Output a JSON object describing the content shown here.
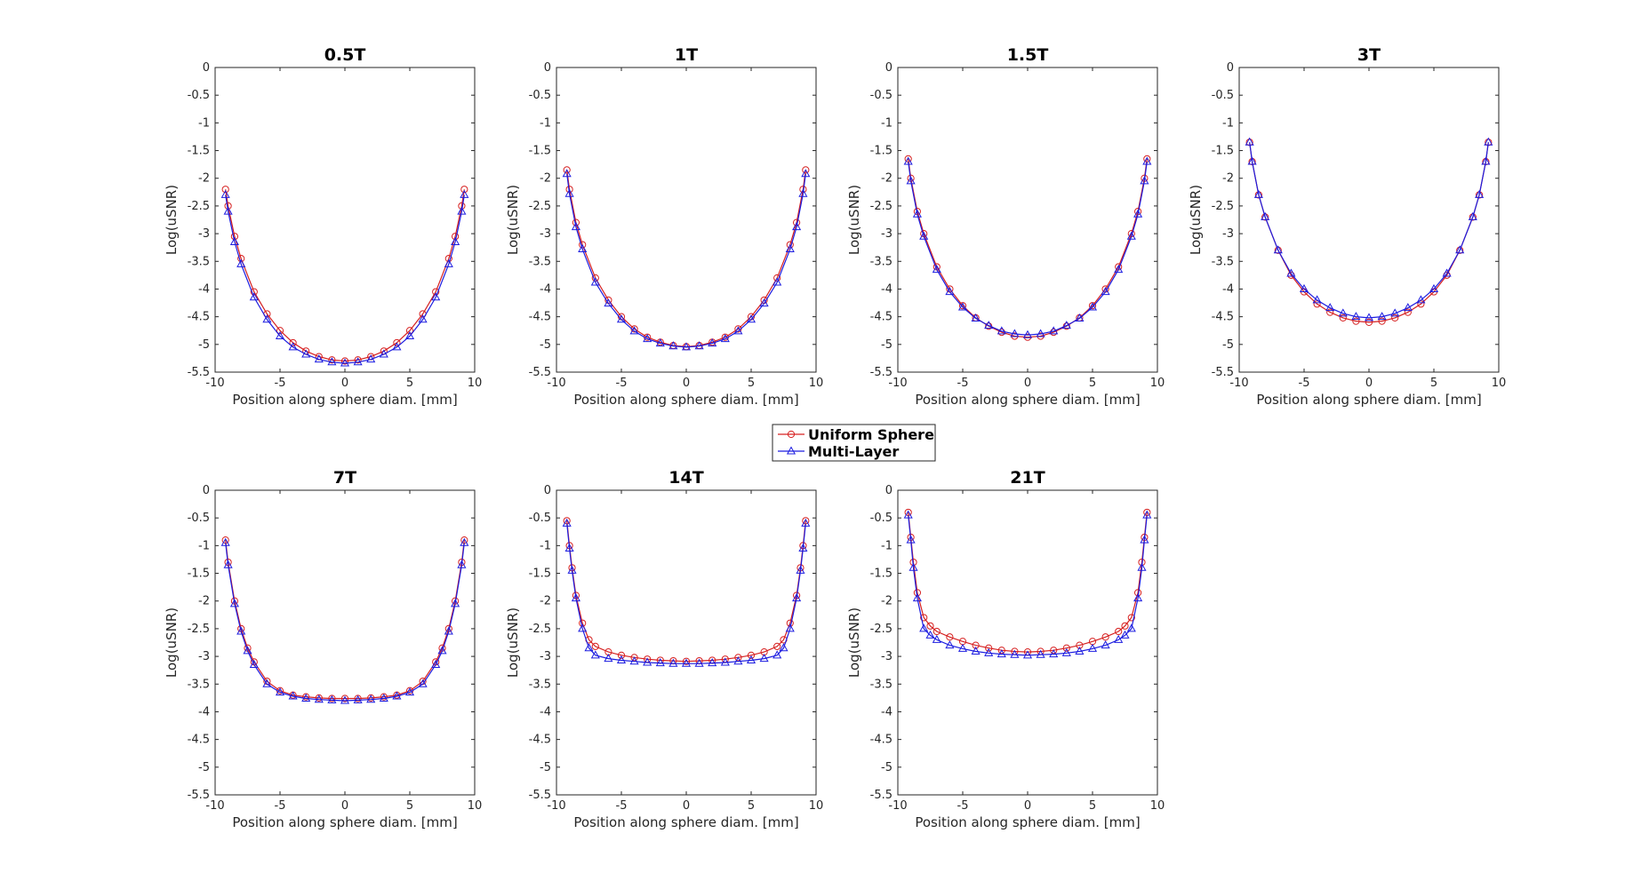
{
  "chart_data": {
    "type": "line",
    "xlabel": "Position along sphere diam. [mm]",
    "ylabel": "Log(uSNR)",
    "xlim": [
      -10,
      10
    ],
    "ylim": [
      -5.5,
      0
    ],
    "xticks": [
      "-10",
      "-5",
      "0",
      "5",
      "10"
    ],
    "yticks": [
      "0",
      "-0.5",
      "-1",
      "-1.5",
      "-2",
      "-2.5",
      "-3",
      "-3.5",
      "-4",
      "-4.5",
      "-5",
      "-5.5"
    ],
    "colors": {
      "uniform": "#d62020",
      "multilayer": "#1c1ce0",
      "axes": "#262626"
    },
    "legend": {
      "position": "center",
      "entries": [
        {
          "name": "Uniform Sphere",
          "marker": "circle"
        },
        {
          "name": "Multi-Layer",
          "marker": "triangle"
        }
      ]
    },
    "panels": [
      {
        "title": "0.5T",
        "series": [
          {
            "name": "Uniform Sphere",
            "x": [
              -9.2,
              -9,
              -8.5,
              -8,
              -7,
              -6,
              -5,
              -4,
              -3,
              -2,
              -1,
              0,
              1,
              2,
              3,
              4,
              5,
              6,
              7,
              8,
              8.5,
              9,
              9.2
            ],
            "y": [
              -2.2,
              -2.5,
              -3.05,
              -3.45,
              -4.05,
              -4.45,
              -4.75,
              -4.97,
              -5.12,
              -5.22,
              -5.28,
              -5.3,
              -5.28,
              -5.22,
              -5.12,
              -4.97,
              -4.75,
              -4.45,
              -4.05,
              -3.45,
              -3.05,
              -2.5,
              -2.2
            ]
          },
          {
            "name": "Multi-Layer",
            "x": [
              -9.2,
              -9,
              -8.5,
              -8,
              -7,
              -6,
              -5,
              -4,
              -3,
              -2,
              -1,
              0,
              1,
              2,
              3,
              4,
              5,
              6,
              7,
              8,
              8.5,
              9,
              9.2
            ],
            "y": [
              -2.3,
              -2.6,
              -3.15,
              -3.55,
              -4.15,
              -4.55,
              -4.85,
              -5.05,
              -5.18,
              -5.27,
              -5.32,
              -5.34,
              -5.32,
              -5.27,
              -5.18,
              -5.05,
              -4.85,
              -4.55,
              -4.15,
              -3.55,
              -3.15,
              -2.6,
              -2.3
            ]
          }
        ]
      },
      {
        "title": "1T",
        "series": [
          {
            "name": "Uniform Sphere",
            "x": [
              -9.2,
              -9,
              -8.5,
              -8,
              -7,
              -6,
              -5,
              -4,
              -3,
              -2,
              -1,
              0,
              1,
              2,
              3,
              4,
              5,
              6,
              7,
              8,
              8.5,
              9,
              9.2
            ],
            "y": [
              -1.85,
              -2.2,
              -2.8,
              -3.2,
              -3.8,
              -4.2,
              -4.5,
              -4.72,
              -4.87,
              -4.96,
              -5.02,
              -5.04,
              -5.02,
              -4.96,
              -4.87,
              -4.72,
              -4.5,
              -4.2,
              -3.8,
              -3.2,
              -2.8,
              -2.2,
              -1.85
            ]
          },
          {
            "name": "Multi-Layer",
            "x": [
              -9.2,
              -9,
              -8.5,
              -8,
              -7,
              -6,
              -5,
              -4,
              -3,
              -2,
              -1,
              0,
              1,
              2,
              3,
              4,
              5,
              6,
              7,
              8,
              8.5,
              9,
              9.2
            ],
            "y": [
              -1.92,
              -2.28,
              -2.88,
              -3.28,
              -3.88,
              -4.26,
              -4.55,
              -4.76,
              -4.9,
              -4.98,
              -5.03,
              -5.05,
              -5.03,
              -4.98,
              -4.9,
              -4.76,
              -4.55,
              -4.26,
              -3.88,
              -3.28,
              -2.88,
              -2.28,
              -1.92
            ]
          }
        ]
      },
      {
        "title": "1.5T",
        "series": [
          {
            "name": "Uniform Sphere",
            "x": [
              -9.2,
              -9,
              -8.5,
              -8,
              -7,
              -6,
              -5,
              -4,
              -3,
              -2,
              -1,
              0,
              1,
              2,
              3,
              4,
              5,
              6,
              7,
              8,
              8.5,
              9,
              9.2
            ],
            "y": [
              -1.65,
              -2.0,
              -2.6,
              -3.0,
              -3.6,
              -4.0,
              -4.3,
              -4.52,
              -4.67,
              -4.78,
              -4.85,
              -4.87,
              -4.85,
              -4.78,
              -4.67,
              -4.52,
              -4.3,
              -4.0,
              -3.6,
              -3.0,
              -2.6,
              -2.0,
              -1.65
            ]
          },
          {
            "name": "Multi-Layer",
            "x": [
              -9.2,
              -9,
              -8.5,
              -8,
              -7,
              -6,
              -5,
              -4,
              -3,
              -2,
              -1,
              0,
              1,
              2,
              3,
              4,
              5,
              6,
              7,
              8,
              8.5,
              9,
              9.2
            ],
            "y": [
              -1.7,
              -2.05,
              -2.65,
              -3.05,
              -3.65,
              -4.05,
              -4.33,
              -4.53,
              -4.66,
              -4.76,
              -4.81,
              -4.83,
              -4.81,
              -4.76,
              -4.66,
              -4.53,
              -4.33,
              -4.05,
              -3.65,
              -3.05,
              -2.65,
              -2.05,
              -1.7
            ]
          }
        ]
      },
      {
        "title": "3T",
        "series": [
          {
            "name": "Uniform Sphere",
            "x": [
              -9.2,
              -9,
              -8.5,
              -8,
              -7,
              -6,
              -5,
              -4,
              -3,
              -2,
              -1,
              0,
              1,
              2,
              3,
              4,
              5,
              6,
              7,
              8,
              8.5,
              9,
              9.2
            ],
            "y": [
              -1.35,
              -1.7,
              -2.3,
              -2.7,
              -3.3,
              -3.75,
              -4.05,
              -4.27,
              -4.42,
              -4.52,
              -4.58,
              -4.6,
              -4.58,
              -4.52,
              -4.42,
              -4.27,
              -4.05,
              -3.75,
              -3.3,
              -2.7,
              -2.3,
              -1.7,
              -1.35
            ]
          },
          {
            "name": "Multi-Layer",
            "x": [
              -9.2,
              -9,
              -8.5,
              -8,
              -7,
              -6,
              -5,
              -4,
              -3,
              -2,
              -1,
              0,
              1,
              2,
              3,
              4,
              5,
              6,
              7,
              8,
              8.5,
              9,
              9.2
            ],
            "y": [
              -1.35,
              -1.7,
              -2.3,
              -2.7,
              -3.3,
              -3.72,
              -4.0,
              -4.2,
              -4.34,
              -4.44,
              -4.5,
              -4.52,
              -4.5,
              -4.44,
              -4.34,
              -4.2,
              -4.0,
              -3.72,
              -3.3,
              -2.7,
              -2.3,
              -1.7,
              -1.35
            ]
          }
        ]
      },
      {
        "title": "7T",
        "series": [
          {
            "name": "Uniform Sphere",
            "x": [
              -9.2,
              -9,
              -8.5,
              -8,
              -7.5,
              -7,
              -6,
              -5,
              -4,
              -3,
              -2,
              -1,
              0,
              1,
              2,
              3,
              4,
              5,
              6,
              7,
              7.5,
              8,
              8.5,
              9,
              9.2
            ],
            "y": [
              -0.9,
              -1.3,
              -2.0,
              -2.5,
              -2.85,
              -3.1,
              -3.45,
              -3.62,
              -3.7,
              -3.73,
              -3.75,
              -3.76,
              -3.76,
              -3.76,
              -3.75,
              -3.73,
              -3.7,
              -3.62,
              -3.45,
              -3.1,
              -2.85,
              -2.5,
              -2.0,
              -1.3,
              -0.9
            ]
          },
          {
            "name": "Multi-Layer",
            "x": [
              -9.2,
              -9,
              -8.5,
              -8,
              -7.5,
              -7,
              -6,
              -5,
              -4,
              -3,
              -2,
              -1,
              0,
              1,
              2,
              3,
              4,
              5,
              6,
              7,
              7.5,
              8,
              8.5,
              9,
              9.2
            ],
            "y": [
              -0.95,
              -1.35,
              -2.05,
              -2.55,
              -2.9,
              -3.15,
              -3.5,
              -3.65,
              -3.72,
              -3.76,
              -3.78,
              -3.79,
              -3.8,
              -3.79,
              -3.78,
              -3.76,
              -3.72,
              -3.65,
              -3.5,
              -3.15,
              -2.9,
              -2.55,
              -2.05,
              -1.35,
              -0.95
            ]
          }
        ]
      },
      {
        "title": "14T",
        "series": [
          {
            "name": "Uniform Sphere",
            "x": [
              -9.2,
              -9,
              -8.8,
              -8.5,
              -8,
              -7.5,
              -7,
              -6,
              -5,
              -4,
              -3,
              -2,
              -1,
              0,
              1,
              2,
              3,
              4,
              5,
              6,
              7,
              7.5,
              8,
              8.5,
              8.8,
              9,
              9.2
            ],
            "y": [
              -0.55,
              -1.0,
              -1.4,
              -1.9,
              -2.4,
              -2.7,
              -2.82,
              -2.92,
              -2.98,
              -3.02,
              -3.05,
              -3.07,
              -3.08,
              -3.09,
              -3.08,
              -3.07,
              -3.05,
              -3.02,
              -2.98,
              -2.92,
              -2.82,
              -2.7,
              -2.4,
              -1.9,
              -1.4,
              -1.0,
              -0.55
            ]
          },
          {
            "name": "Multi-Layer",
            "x": [
              -9.2,
              -9,
              -8.8,
              -8.5,
              -8,
              -7.5,
              -7,
              -6,
              -5,
              -4,
              -3,
              -2,
              -1,
              0,
              1,
              2,
              3,
              4,
              5,
              6,
              7,
              7.5,
              8,
              8.5,
              8.8,
              9,
              9.2
            ],
            "y": [
              -0.6,
              -1.05,
              -1.45,
              -1.95,
              -2.5,
              -2.85,
              -2.98,
              -3.04,
              -3.07,
              -3.09,
              -3.11,
              -3.12,
              -3.13,
              -3.13,
              -3.13,
              -3.12,
              -3.11,
              -3.09,
              -3.07,
              -3.04,
              -2.98,
              -2.85,
              -2.5,
              -1.95,
              -1.45,
              -1.05,
              -0.6
            ]
          }
        ]
      },
      {
        "title": "21T",
        "series": [
          {
            "name": "Uniform Sphere",
            "x": [
              -9.2,
              -9,
              -8.8,
              -8.5,
              -8,
              -7.5,
              -7,
              -6,
              -5,
              -4,
              -3,
              -2,
              -1,
              0,
              1,
              2,
              3,
              4,
              5,
              6,
              7,
              7.5,
              8,
              8.5,
              8.8,
              9,
              9.2
            ],
            "y": [
              -0.4,
              -0.85,
              -1.3,
              -1.85,
              -2.3,
              -2.45,
              -2.55,
              -2.65,
              -2.73,
              -2.8,
              -2.85,
              -2.89,
              -2.91,
              -2.92,
              -2.91,
              -2.89,
              -2.85,
              -2.8,
              -2.73,
              -2.65,
              -2.55,
              -2.45,
              -2.3,
              -1.85,
              -1.3,
              -0.85,
              -0.4
            ]
          },
          {
            "name": "Multi-Layer",
            "x": [
              -9.2,
              -9,
              -8.8,
              -8.5,
              -8,
              -7.5,
              -7,
              -6,
              -5,
              -4,
              -3,
              -2,
              -1,
              0,
              1,
              2,
              3,
              4,
              5,
              6,
              7,
              7.5,
              8,
              8.5,
              8.8,
              9,
              9.2
            ],
            "y": [
              -0.45,
              -0.9,
              -1.4,
              -1.95,
              -2.5,
              -2.62,
              -2.7,
              -2.8,
              -2.86,
              -2.91,
              -2.94,
              -2.96,
              -2.97,
              -2.98,
              -2.97,
              -2.96,
              -2.94,
              -2.91,
              -2.86,
              -2.8,
              -2.7,
              -2.62,
              -2.5,
              -1.95,
              -1.4,
              -0.9,
              -0.45
            ]
          }
        ]
      }
    ]
  }
}
